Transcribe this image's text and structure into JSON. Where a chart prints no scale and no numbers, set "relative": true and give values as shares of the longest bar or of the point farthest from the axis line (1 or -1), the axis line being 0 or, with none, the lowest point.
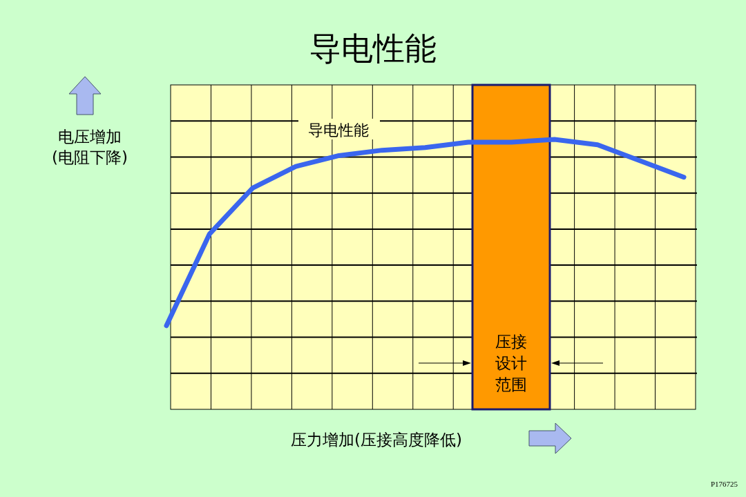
{
  "chart_data": {
    "type": "line",
    "title": "导电性能",
    "xlabel": "压力增加(压接高度降低)",
    "ylabel": "电压增加\n(电阻下降)",
    "relative": true,
    "grid": true,
    "categories": [
      null,
      null,
      null,
      null,
      null,
      null,
      null,
      null,
      null,
      null,
      null,
      null,
      null
    ],
    "series": [
      {
        "name": "导电性能",
        "color": "#3a66ee",
        "values": [
          0.31,
          0.65,
          0.82,
          0.9,
          0.94,
          0.96,
          0.97,
          0.99,
          0.99,
          1.0,
          0.98,
          0.92,
          0.86
        ]
      }
    ],
    "annotations": [
      "压接设计范围",
      "P176725"
    ]
  }
}
